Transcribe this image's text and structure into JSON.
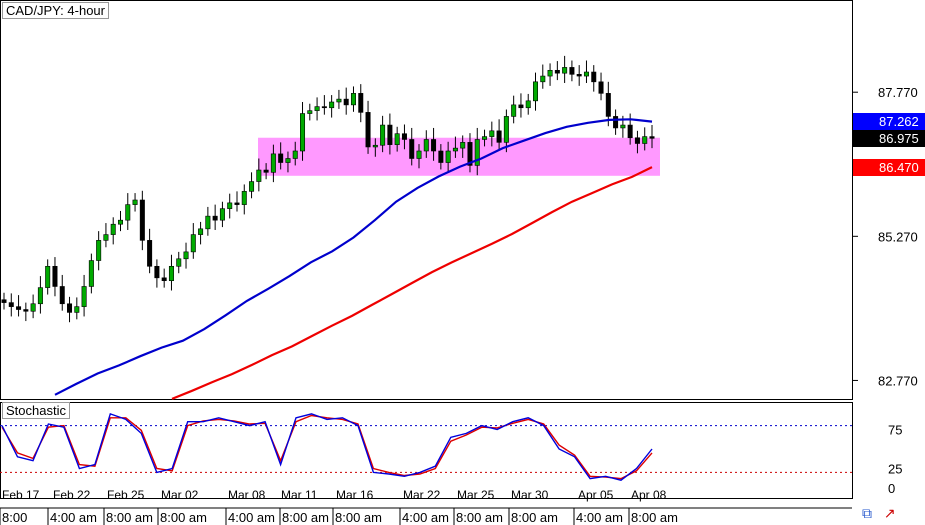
{
  "chart_data": {
    "type": "candlestick",
    "title": "CAD/JPY: 4-hour",
    "price_axis": {
      "ticks": [
        {
          "label": "87.770",
          "value": 87.77
        },
        {
          "label": "85.270",
          "value": 85.27
        },
        {
          "label": "82.770",
          "value": 82.77
        }
      ],
      "range": [
        82.5,
        89.3
      ]
    },
    "price_tags": [
      {
        "label": "87.262",
        "value": 87.262,
        "bg": "#0000ff",
        "fg": "#ffffff"
      },
      {
        "label": "86.975",
        "value": 86.975,
        "bg": "#000000",
        "fg": "#ffffff"
      },
      {
        "label": "86.470",
        "value": 86.47,
        "bg": "#ff0000",
        "fg": "#ffffff"
      }
    ],
    "zone": {
      "low": 86.32,
      "high": 86.98,
      "color": "#ff99ff"
    },
    "close": [
      84.12,
      84.05,
      84.0,
      83.97,
      84.1,
      84.38,
      84.75,
      84.4,
      84.1,
      83.95,
      84.05,
      84.4,
      84.85,
      85.2,
      85.3,
      85.48,
      85.55,
      85.82,
      85.9,
      85.2,
      84.75,
      84.55,
      84.5,
      84.75,
      84.88,
      85.0,
      85.3,
      85.4,
      85.62,
      85.55,
      85.75,
      85.85,
      85.82,
      86.05,
      86.22,
      86.42,
      86.38,
      86.7,
      86.55,
      86.62,
      86.75,
      87.4,
      87.45,
      87.52,
      87.5,
      87.6,
      87.65,
      87.55,
      87.75,
      87.42,
      86.82,
      86.85,
      87.2,
      86.86,
      87.05,
      86.95,
      86.62,
      86.75,
      86.95,
      86.75,
      86.55,
      86.75,
      86.8,
      86.9,
      86.5,
      86.95,
      87.0,
      87.1,
      86.9,
      87.35,
      87.55,
      87.5,
      87.62,
      87.95,
      88.05,
      88.15,
      88.1,
      88.2,
      88.08,
      88.05,
      88.12,
      87.95,
      87.75,
      87.35,
      87.15,
      87.2,
      86.98,
      86.88,
      87.0,
      86.97
    ],
    "sma_blue": [
      82.52,
      82.71,
      82.89,
      83.03,
      83.19,
      83.34,
      83.46,
      83.66,
      83.9,
      84.15,
      84.36,
      84.58,
      84.82,
      85.01,
      85.25,
      85.55,
      85.87,
      86.11,
      86.31,
      86.48,
      86.62,
      86.8,
      86.93,
      87.06,
      87.17,
      87.24,
      87.29,
      87.3,
      87.26
    ],
    "sma_red": [
      82.45,
      82.59,
      82.74,
      82.88,
      83.04,
      83.21,
      83.36,
      83.54,
      83.72,
      83.89,
      84.08,
      84.27,
      84.46,
      84.65,
      84.82,
      84.98,
      85.14,
      85.31,
      85.5,
      85.69,
      85.87,
      86.02,
      86.17,
      86.3,
      86.47
    ],
    "stochastic": {
      "title": "Stochastic",
      "levels": [
        {
          "label": "75",
          "value": 75
        },
        {
          "label": "25",
          "value": 25
        },
        {
          "label": "0",
          "value": 0
        }
      ],
      "upper": 80,
      "lower": 20,
      "main": [
        80,
        40,
        35,
        82,
        78,
        25,
        30,
        95,
        88,
        70,
        20,
        25,
        85,
        85,
        90,
        85,
        80,
        85,
        30,
        90,
        95,
        88,
        90,
        80,
        20,
        18,
        15,
        20,
        28,
        65,
        70,
        80,
        75,
        85,
        90,
        80,
        50,
        40,
        12,
        15,
        10,
        25,
        50
      ],
      "signal": [
        78,
        45,
        38,
        78,
        80,
        30,
        28,
        90,
        90,
        74,
        25,
        22,
        80,
        86,
        88,
        86,
        82,
        83,
        35,
        85,
        93,
        90,
        88,
        82,
        25,
        20,
        16,
        18,
        25,
        60,
        68,
        78,
        77,
        83,
        88,
        82,
        55,
        42,
        15,
        14,
        12,
        22,
        45
      ]
    },
    "date_labels": [
      "Feb 17",
      "Feb 22",
      "Feb 25",
      "Mar 02",
      "Mar 08",
      "Mar 11",
      "Mar 16",
      "Mar 22",
      "Mar 25",
      "Mar 30",
      "Apr 05",
      "Apr 08"
    ],
    "time_labels": [
      "8:00",
      "4:00 am",
      "8:00 am",
      "8:00 am",
      "4:00 am",
      "8:00 am",
      "8:00 am",
      "4:00 am",
      "8:00 am",
      "8:00 am",
      "4:00 am",
      "8:00 am"
    ],
    "colors": {
      "bull": "#00aa00",
      "bear": "#000000",
      "sma_blue": "#0000cc",
      "sma_red": "#ee0000"
    }
  }
}
